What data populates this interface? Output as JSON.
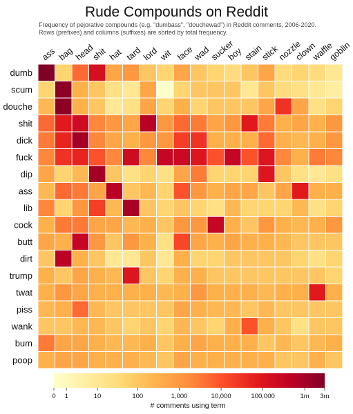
{
  "title": "Rude Compounds on Reddit",
  "subtitle_lines": [
    "Frequency of pejorative compounds (e.g. \"dumbass\", \"douchewad\") in Reddit comments, 2006-2020.",
    "Rows (prefixes) and columns (suffixes) are sorted by total frequency."
  ],
  "chart_data": {
    "type": "heatmap",
    "rows": [
      "dumb",
      "scum",
      "douche",
      "shit",
      "dick",
      "fuck",
      "dip",
      "ass",
      "lib",
      "cock",
      "butt",
      "dirt",
      "trump",
      "twat",
      "piss",
      "wank",
      "bum",
      "poop"
    ],
    "columns": [
      "ass",
      "bag",
      "head",
      "shit",
      "hat",
      "tard",
      "lord",
      "wit",
      "face",
      "wad",
      "sucker",
      "boy",
      "stain",
      "stick",
      "nozzle",
      "clown",
      "waffle",
      "goblin"
    ],
    "values": [
      [
        3000000,
        50,
        5000,
        150000,
        500,
        1000,
        100,
        50,
        500,
        100,
        50,
        30,
        100,
        500,
        30,
        50,
        30,
        10
      ],
      [
        50,
        2000000,
        300,
        100,
        20,
        10,
        500,
        0,
        50,
        100,
        100,
        100,
        10,
        100,
        30,
        20,
        10,
        5
      ],
      [
        200,
        2000000,
        300,
        100,
        10,
        20,
        500,
        50,
        300,
        50,
        100,
        100,
        100,
        500,
        30000,
        500,
        20,
        50
      ],
      [
        5000,
        80000,
        200000,
        2000,
        1000,
        500,
        500000,
        1000,
        5000,
        3000,
        500,
        1000,
        80000,
        3000,
        300,
        500,
        300,
        1000
      ],
      [
        3000,
        50000,
        1000000,
        2000,
        500,
        300,
        1000,
        1000,
        20000,
        30000,
        300,
        300,
        300,
        5000,
        300,
        200,
        300,
        1000
      ],
      [
        2000,
        30000,
        50000,
        10000,
        2000,
        200000,
        2000,
        300000,
        250000,
        100000,
        10000,
        300000,
        10000,
        100000,
        2000,
        300,
        3000,
        2000
      ],
      [
        500,
        50,
        200,
        1000000,
        100,
        20,
        50,
        20,
        500,
        3000,
        50,
        50,
        50,
        100000,
        100,
        20,
        10,
        20
      ],
      [
        200,
        5000,
        3000,
        500,
        500000,
        100,
        200,
        50,
        10000,
        1000,
        300,
        500,
        500,
        100,
        500,
        80000,
        300,
        300
      ],
      [
        2000,
        50,
        1000,
        20000,
        200,
        800000,
        100,
        50,
        100,
        50,
        20,
        200,
        50,
        50,
        50,
        200,
        20,
        50
      ],
      [
        300,
        3000,
        3000,
        500,
        500,
        200,
        300,
        100,
        1000,
        1000,
        300000,
        300,
        100,
        1000,
        300,
        200,
        300,
        1000
      ],
      [
        500,
        300,
        300000,
        1000,
        100,
        1000,
        300,
        20,
        15000,
        500,
        300,
        500,
        300,
        300,
        200,
        100,
        100,
        100
      ],
      [
        100,
        500000,
        300,
        100,
        10,
        10,
        100,
        10,
        300,
        50,
        50,
        100,
        100,
        100,
        100,
        50,
        20,
        50
      ],
      [
        300,
        100,
        500,
        300,
        200,
        100000,
        100,
        50,
        300,
        300,
        100,
        100,
        100,
        100,
        100,
        100,
        100,
        50
      ],
      [
        300,
        1000,
        500,
        300,
        300,
        300,
        300,
        200,
        300,
        1000,
        300,
        300,
        300,
        200,
        300,
        300,
        80000,
        300
      ],
      [
        200,
        300,
        5000,
        200,
        100,
        100,
        100,
        100,
        500,
        300,
        200,
        200,
        100,
        200,
        100,
        100,
        100,
        100
      ],
      [
        100,
        100,
        200,
        200,
        100,
        50,
        100,
        50,
        200,
        100,
        50,
        300,
        10000,
        300,
        100,
        20,
        100,
        100
      ],
      [
        3000,
        500,
        500,
        300,
        200,
        200,
        300,
        100,
        300,
        500,
        300,
        300,
        300,
        100,
        200,
        100,
        200,
        300
      ],
      [
        300,
        500,
        500,
        300,
        300,
        300,
        200,
        100,
        500,
        300,
        300,
        300,
        300,
        300,
        100,
        100,
        300,
        100
      ]
    ],
    "colorbar": {
      "label": "# comments using term",
      "scale": "log",
      "ticks": [
        0,
        1,
        10,
        100,
        1000,
        10000,
        100000,
        1000000,
        3000000
      ],
      "tick_labels": [
        "0",
        "1",
        "10",
        "100",
        "1,000",
        "10,000",
        "100,000",
        "1m",
        "3m"
      ],
      "colors": [
        "#ffffcc",
        "#ffeda0",
        "#fed976",
        "#feb24c",
        "#fd8d3c",
        "#fc4e2a",
        "#e31a1c",
        "#bd0026",
        "#800026"
      ]
    }
  }
}
